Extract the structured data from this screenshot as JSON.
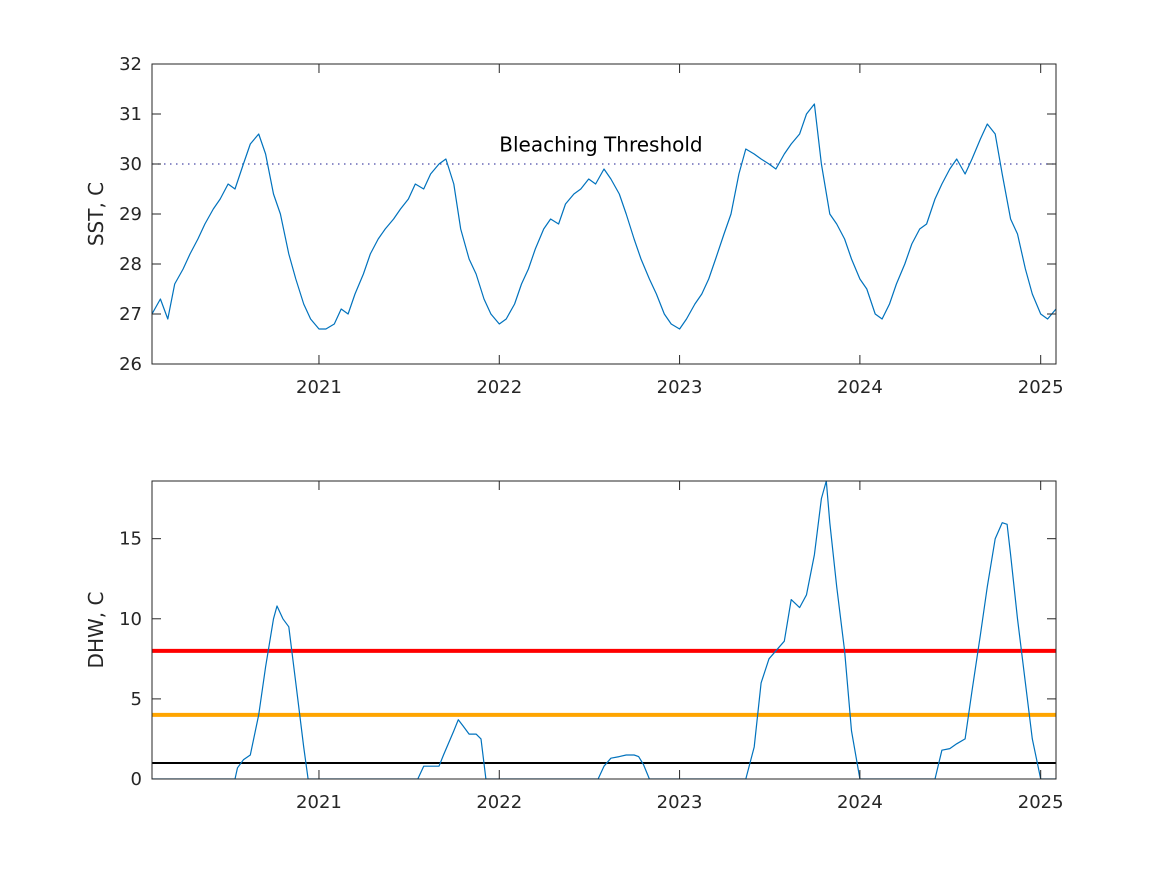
{
  "chart_data": [
    {
      "type": "line",
      "ylabel": "SST, C",
      "xlim": [
        "2020-01-29",
        "2025-02-01"
      ],
      "ylim": [
        26,
        32
      ],
      "xticks": [
        "2021",
        "2022",
        "2023",
        "2024",
        "2025"
      ],
      "yticks": [
        "26",
        "27",
        "28",
        "29",
        "30",
        "31",
        "32"
      ],
      "grid": false,
      "reference_lines": [
        {
          "y": 30,
          "style": "dotted",
          "color": "#4a4aa8"
        }
      ],
      "annotations": [
        {
          "text": "Bleaching Threshold",
          "x": "2022-01-01",
          "y": 30.25
        }
      ],
      "series": [
        {
          "color": "#0072bd",
          "x": [
            "2020-01-29",
            "2020-02-15",
            "2020-03-01",
            "2020-03-15",
            "2020-04-01",
            "2020-04-15",
            "2020-05-01",
            "2020-05-15",
            "2020-06-01",
            "2020-06-15",
            "2020-07-01",
            "2020-07-15",
            "2020-08-01",
            "2020-08-15",
            "2020-09-01",
            "2020-09-15",
            "2020-10-01",
            "2020-10-15",
            "2020-11-01",
            "2020-11-15",
            "2020-12-01",
            "2020-12-15",
            "2021-01-01",
            "2021-01-15",
            "2021-02-01",
            "2021-02-15",
            "2021-03-01",
            "2021-03-15",
            "2021-04-01",
            "2021-04-15",
            "2021-05-01",
            "2021-05-15",
            "2021-06-01",
            "2021-06-15",
            "2021-07-01",
            "2021-07-15",
            "2021-08-01",
            "2021-08-15",
            "2021-09-01",
            "2021-09-15",
            "2021-10-01",
            "2021-10-15",
            "2021-11-01",
            "2021-11-15",
            "2021-12-01",
            "2021-12-15",
            "2022-01-01",
            "2022-01-15",
            "2022-02-01",
            "2022-02-15",
            "2022-03-01",
            "2022-03-15",
            "2022-04-01",
            "2022-04-15",
            "2022-05-01",
            "2022-05-15",
            "2022-06-01",
            "2022-06-15",
            "2022-07-01",
            "2022-07-15",
            "2022-08-01",
            "2022-08-15",
            "2022-09-01",
            "2022-09-15",
            "2022-10-01",
            "2022-10-15",
            "2022-11-01",
            "2022-11-15",
            "2022-12-01",
            "2022-12-15",
            "2023-01-01",
            "2023-01-15",
            "2023-02-01",
            "2023-02-15",
            "2023-03-01",
            "2023-03-15",
            "2023-04-01",
            "2023-04-15",
            "2023-05-01",
            "2023-05-15",
            "2023-06-01",
            "2023-06-15",
            "2023-07-01",
            "2023-07-15",
            "2023-08-01",
            "2023-08-15",
            "2023-09-01",
            "2023-09-15",
            "2023-10-01",
            "2023-10-15",
            "2023-11-01",
            "2023-11-15",
            "2023-12-01",
            "2023-12-15",
            "2024-01-01",
            "2024-01-15",
            "2024-02-01",
            "2024-02-15",
            "2024-03-01",
            "2024-03-15",
            "2024-04-01",
            "2024-04-15",
            "2024-05-01",
            "2024-05-15",
            "2024-06-01",
            "2024-06-15",
            "2024-07-01",
            "2024-07-15",
            "2024-08-01",
            "2024-08-15",
            "2024-09-01",
            "2024-09-15",
            "2024-10-01",
            "2024-10-15",
            "2024-11-01",
            "2024-11-15",
            "2024-12-01",
            "2024-12-15",
            "2025-01-01",
            "2025-01-15",
            "2025-02-01"
          ],
          "y": [
            27.0,
            27.3,
            26.9,
            27.6,
            27.9,
            28.2,
            28.5,
            28.8,
            29.1,
            29.3,
            29.6,
            29.5,
            30.0,
            30.4,
            30.6,
            30.2,
            29.4,
            29.0,
            28.2,
            27.7,
            27.2,
            26.9,
            26.7,
            26.7,
            26.8,
            27.1,
            27.0,
            27.4,
            27.8,
            28.2,
            28.5,
            28.7,
            28.9,
            29.1,
            29.3,
            29.6,
            29.5,
            29.8,
            30.0,
            30.1,
            29.6,
            28.7,
            28.1,
            27.8,
            27.3,
            27.0,
            26.8,
            26.9,
            27.2,
            27.6,
            27.9,
            28.3,
            28.7,
            28.9,
            28.8,
            29.2,
            29.4,
            29.5,
            29.7,
            29.6,
            29.9,
            29.7,
            29.4,
            29.0,
            28.5,
            28.1,
            27.7,
            27.4,
            27.0,
            26.8,
            26.7,
            26.9,
            27.2,
            27.4,
            27.7,
            28.1,
            28.6,
            29.0,
            29.8,
            30.3,
            30.2,
            30.1,
            30.0,
            29.9,
            30.2,
            30.4,
            30.6,
            31.0,
            31.2,
            30.0,
            29.0,
            28.8,
            28.5,
            28.1,
            27.7,
            27.5,
            27.0,
            26.9,
            27.2,
            27.6,
            28.0,
            28.4,
            28.7,
            28.8,
            29.3,
            29.6,
            29.9,
            30.1,
            29.8,
            30.1,
            30.5,
            30.8,
            30.6,
            29.8,
            28.9,
            28.6,
            27.9,
            27.4,
            27.0,
            26.9,
            27.1
          ]
        }
      ]
    },
    {
      "type": "line",
      "ylabel": "DHW, C",
      "xlim": [
        "2020-01-29",
        "2025-02-01"
      ],
      "ylim": [
        0,
        18.6
      ],
      "xticks": [
        "2021",
        "2022",
        "2023",
        "2024",
        "2025"
      ],
      "yticks": [
        "0",
        "5",
        "10",
        "15"
      ],
      "grid": false,
      "reference_lines": [
        {
          "y": 8,
          "color": "#ff0000"
        },
        {
          "y": 4,
          "color": "#ffa500"
        },
        {
          "y": 1,
          "color": "#000000"
        }
      ],
      "series": [
        {
          "color": "#0072bd",
          "x": [
            "2020-01-29",
            "2020-07-15",
            "2020-07-20",
            "2020-08-01",
            "2020-08-15",
            "2020-09-01",
            "2020-09-15",
            "2020-10-01",
            "2020-10-08",
            "2020-10-20",
            "2020-11-01",
            "2020-11-15",
            "2020-12-01",
            "2020-12-10",
            "2021-07-20",
            "2021-08-01",
            "2021-09-01",
            "2021-09-10",
            "2021-10-01",
            "2021-10-10",
            "2021-10-20",
            "2021-11-01",
            "2021-11-15",
            "2021-11-25",
            "2021-12-05",
            "2022-07-20",
            "2022-08-01",
            "2022-08-15",
            "2022-09-01",
            "2022-09-15",
            "2022-10-01",
            "2022-10-10",
            "2022-10-20",
            "2022-11-01",
            "2023-05-15",
            "2023-06-01",
            "2023-06-15",
            "2023-07-01",
            "2023-07-15",
            "2023-08-01",
            "2023-08-15",
            "2023-09-01",
            "2023-09-15",
            "2023-10-01",
            "2023-10-15",
            "2023-10-25",
            "2023-11-01",
            "2023-11-15",
            "2023-12-01",
            "2023-12-15",
            "2024-01-01",
            "2024-01-20",
            "2024-06-01",
            "2024-06-15",
            "2024-07-01",
            "2024-07-15",
            "2024-08-01",
            "2024-08-15",
            "2024-09-01",
            "2024-09-15",
            "2024-10-01",
            "2024-10-15",
            "2024-10-25",
            "2024-11-01",
            "2024-11-15",
            "2024-12-01",
            "2024-12-15",
            "2025-01-01",
            "2025-01-10",
            "2025-01-20",
            "2025-02-01"
          ],
          "y": [
            0,
            0,
            0.7,
            1.2,
            1.5,
            4.0,
            7.0,
            10.0,
            10.8,
            10.0,
            9.5,
            6.0,
            2.0,
            0,
            0,
            0.8,
            0.8,
            1.5,
            3.0,
            3.7,
            3.3,
            2.8,
            2.8,
            2.5,
            0,
            0,
            0.8,
            1.3,
            1.4,
            1.5,
            1.5,
            1.4,
            0.9,
            0,
            0,
            2.0,
            6.0,
            7.5,
            8.0,
            8.6,
            11.2,
            10.7,
            11.5,
            14.0,
            17.5,
            18.6,
            16.0,
            12.0,
            8.0,
            3.0,
            0,
            0,
            0,
            1.8,
            1.9,
            2.2,
            2.5,
            5.5,
            9.0,
            12.0,
            15.0,
            16.0,
            15.9,
            14.0,
            10.0,
            6.0,
            2.5,
            0,
            0,
            0,
            0
          ]
        }
      ]
    }
  ]
}
